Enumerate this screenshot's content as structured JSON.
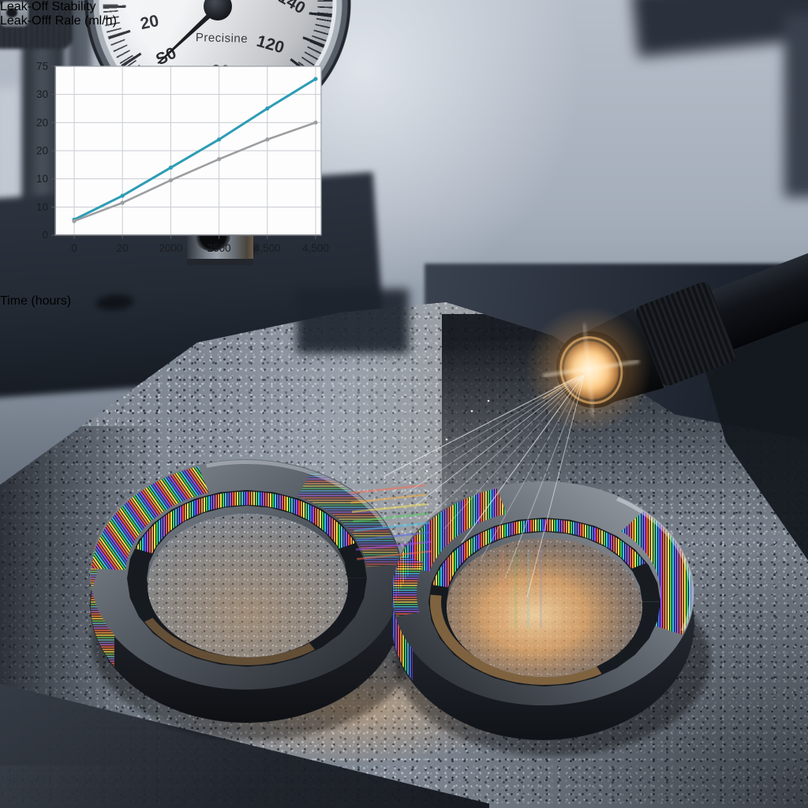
{
  "chart_data": {
    "type": "line",
    "title": "Leak-Off Stability",
    "xlabel": "Time (hours)",
    "ylabel": "Leak-Offf Rale (ml/h)",
    "x_tick_labels": [
      "0",
      "20",
      "2000",
      "2500",
      "4,500",
      "4,500"
    ],
    "y_tick_labels_top_to_bottom": [
      "75",
      "30",
      "20",
      "20",
      "10",
      "10",
      "0"
    ],
    "grid": true,
    "legend_position": "none",
    "plot_bg": "#fdfdfe",
    "grid_color": "#c9ccd0",
    "series": [
      {
        "name": "rising-teal-line",
        "color": "#2d9cb5",
        "marker": "dot",
        "values_grid_units": [
          0.55,
          1.4,
          2.4,
          3.4,
          4.5,
          5.55
        ]
      },
      {
        "name": "rising-gray-line",
        "color": "#9c9ea0",
        "marker": "dot",
        "values_grid_units": [
          0.5,
          1.15,
          1.95,
          2.7,
          3.4,
          4.0
        ]
      }
    ],
    "note_units": "values_grid_units = heights in y-gridline intervals above baseline; printed tick labels are non-monotonic as shown"
  },
  "gauge": {
    "brand": "Precisine",
    "dial_numbers": [
      "20",
      "S0",
      "30",
      "120",
      "140"
    ]
  }
}
